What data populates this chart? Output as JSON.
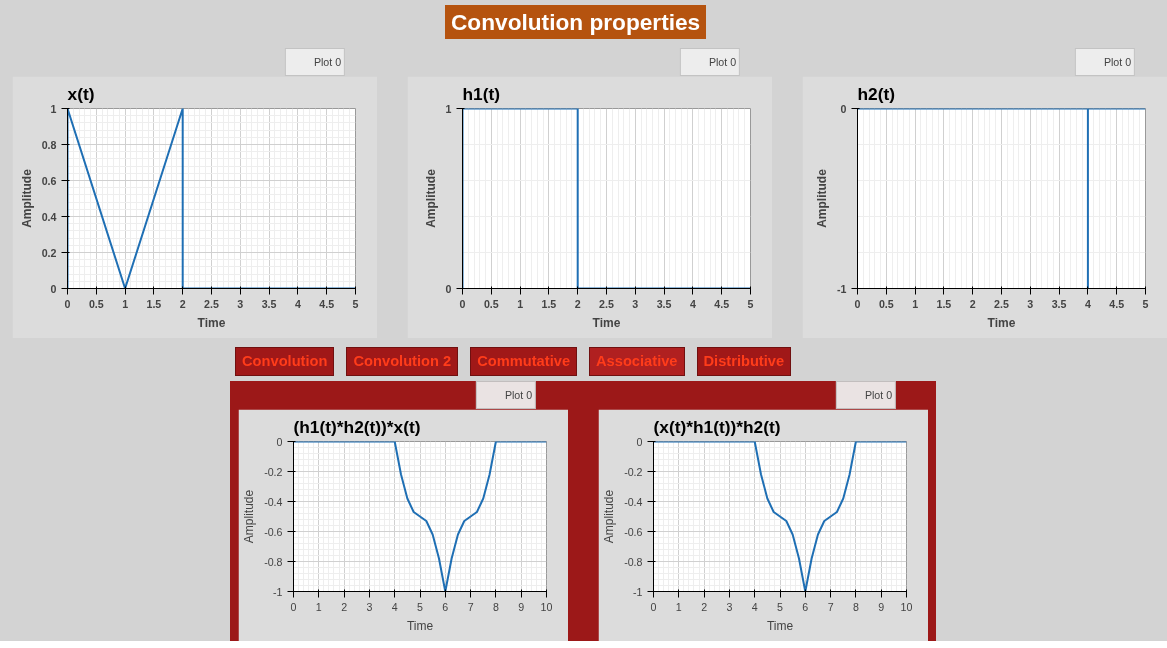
{
  "chart_data": [
    {
      "type": "line",
      "title": "x(t)",
      "xlabel": "Time",
      "ylabel": "Amplitude",
      "annotations": [
        "Convolution properties"
      ],
      "series": [
        {
          "name": "Plot 0",
          "color": "#1f6fb4",
          "x": [
            0,
            0,
            1,
            2,
            2,
            5
          ],
          "values": [
            0,
            1,
            0,
            1,
            0,
            0
          ]
        }
      ],
      "xlim": [
        0,
        5
      ],
      "xticks": [
        0,
        0.5,
        1,
        1.5,
        2,
        2.5,
        3,
        3.5,
        4,
        4.5,
        5
      ],
      "ylim": [
        0,
        1
      ],
      "yticks": [
        0,
        0.2,
        0.4,
        0.6,
        0.8,
        1
      ],
      "grid": true,
      "legend": "top right",
      "marker": "none",
      "line_style": "solid"
    },
    {
      "type": "line",
      "title": "h1(t)",
      "xlabel": "Time",
      "ylabel": "Amplitude",
      "series": [
        {
          "name": "Plot 0",
          "color": "#1f6fb4",
          "x": [
            0,
            0,
            2,
            2,
            5
          ],
          "values": [
            0,
            1,
            1,
            0,
            0
          ]
        }
      ],
      "xlim": [
        0,
        5
      ],
      "xticks": [
        0,
        0.5,
        1,
        1.5,
        2,
        2.5,
        3,
        3.5,
        4,
        4.5,
        5
      ],
      "ylim": [
        0,
        1
      ],
      "yticks": [
        0,
        1
      ],
      "grid": true,
      "legend": "top right",
      "marker": "none",
      "line_style": "solid"
    },
    {
      "type": "line",
      "title": "h2(t)",
      "xlabel": "Time",
      "ylabel": "Amplitude",
      "series": [
        {
          "name": "Plot 0",
          "color": "#1f6fb4",
          "x": [
            0,
            4,
            4,
            4,
            5
          ],
          "values": [
            0,
            0,
            -1,
            0,
            0
          ]
        }
      ],
      "xlim": [
        0,
        5
      ],
      "xticks": [
        0,
        0.5,
        1,
        1.5,
        2,
        2.5,
        3,
        3.5,
        4,
        4.5,
        5
      ],
      "ylim": [
        -1,
        0
      ],
      "yticks": [
        -1,
        0
      ],
      "grid": true,
      "legend": "top right",
      "marker": "none",
      "line_style": "solid"
    },
    {
      "type": "line",
      "title": "(h1(t)*h2(t))*x(t)",
      "xlabel": "Time",
      "ylabel": "Amplitude",
      "annotations": [
        "Convolution",
        "Convolution 2",
        "Commutative",
        "Associative",
        "Distributive"
      ],
      "series": [
        {
          "name": "Plot 0",
          "color": "#1f6fb4",
          "x": [
            0,
            4,
            4.25,
            4.5,
            4.75,
            5,
            5.25,
            5.5,
            5.75,
            6,
            6.25,
            6.5,
            6.75,
            7,
            7.25,
            7.5,
            7.75,
            8,
            10
          ],
          "values": [
            0,
            0,
            -0.22,
            -0.38,
            -0.47,
            -0.5,
            -0.53,
            -0.62,
            -0.78,
            -1,
            -0.78,
            -0.62,
            -0.53,
            -0.5,
            -0.47,
            -0.38,
            -0.22,
            0,
            0
          ]
        }
      ],
      "xlim": [
        0,
        10
      ],
      "xticks": [
        0,
        1,
        2,
        3,
        4,
        5,
        6,
        7,
        8,
        9,
        10
      ],
      "ylim": [
        -1,
        0
      ],
      "yticks": [
        -1,
        -0.8,
        -0.6,
        -0.4,
        -0.2,
        0
      ],
      "grid": true,
      "legend": "top right",
      "marker": "none",
      "line_style": "solid"
    },
    {
      "type": "line",
      "title": "(x(t)*h1(t))*h2(t)",
      "xlabel": "Time",
      "ylabel": "Amplitude",
      "series": [
        {
          "name": "Plot 0",
          "color": "#1f6fb4",
          "x": [
            0,
            4,
            4.25,
            4.5,
            4.75,
            5,
            5.25,
            5.5,
            5.75,
            6,
            6.25,
            6.5,
            6.75,
            7,
            7.25,
            7.5,
            7.75,
            8,
            10
          ],
          "values": [
            0,
            0,
            -0.22,
            -0.38,
            -0.47,
            -0.5,
            -0.53,
            -0.62,
            -0.78,
            -1,
            -0.78,
            -0.62,
            -0.53,
            -0.5,
            -0.47,
            -0.38,
            -0.22,
            0,
            0
          ]
        }
      ],
      "xlim": [
        0,
        10
      ],
      "xticks": [
        0,
        1,
        2,
        3,
        4,
        5,
        6,
        7,
        8,
        9,
        10
      ],
      "ylim": [
        -1,
        0
      ],
      "yticks": [
        -1,
        -0.8,
        -0.6,
        -0.4,
        -0.2,
        0
      ],
      "grid": true,
      "legend": "top right",
      "marker": "none",
      "line_style": "solid"
    }
  ]
}
